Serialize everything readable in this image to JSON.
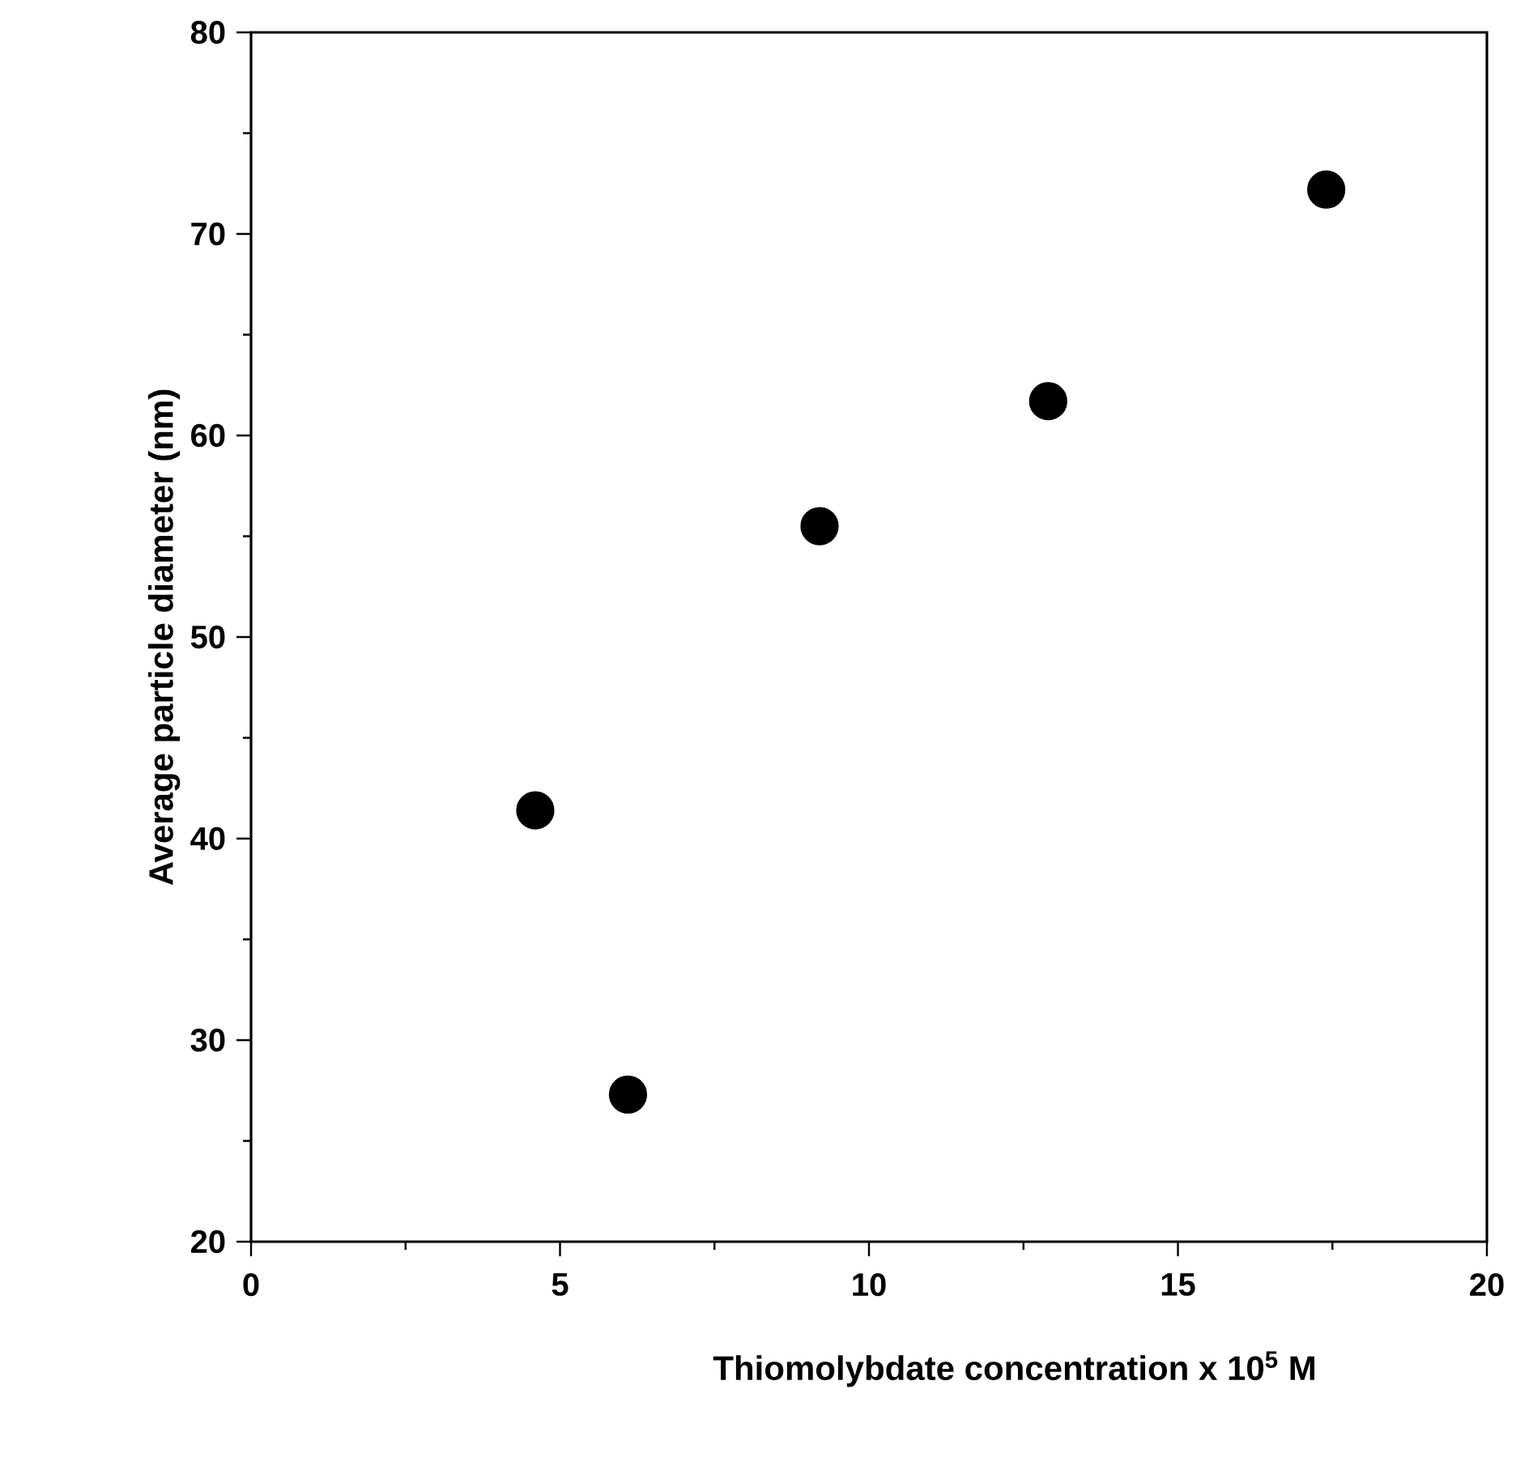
{
  "chart_data": {
    "type": "scatter",
    "xlabel": "Thiomolybdate concentration x 10$^{5}$ M",
    "ylabel": "Average particle diameter (nm)",
    "x": [
      4.6,
      6.1,
      9.2,
      12.9,
      17.4
    ],
    "series": [
      {
        "color": "#000000",
        "values": [
          41.4,
          27.3,
          55.5,
          61.7,
          72.2
        ]
      }
    ],
    "xlim": [
      0,
      20
    ],
    "ylim": [
      20,
      80
    ],
    "xticks": [
      0,
      5,
      10,
      15,
      20
    ],
    "yticks": [
      20,
      30,
      40,
      50,
      60,
      70,
      80
    ],
    "marker": "circle"
  }
}
